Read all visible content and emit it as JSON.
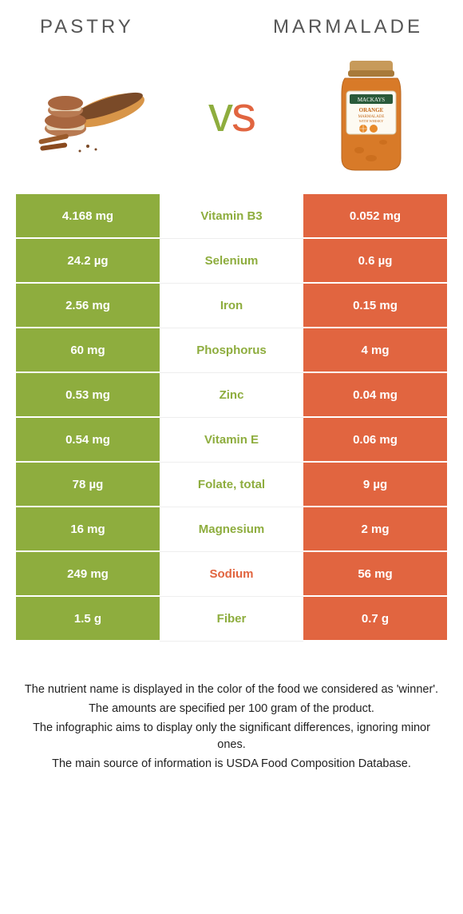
{
  "header": {
    "left_title": "Pastry",
    "right_title": "Marmalade"
  },
  "vs": {
    "v": "v",
    "s": "s"
  },
  "colors": {
    "left": "#8ead3e",
    "right": "#e16540",
    "background": "#ffffff"
  },
  "table": {
    "rows": [
      {
        "left": "4.168 mg",
        "label": "Vitamin B3",
        "right": "0.052 mg",
        "winner": "left"
      },
      {
        "left": "24.2 µg",
        "label": "Selenium",
        "right": "0.6 µg",
        "winner": "left"
      },
      {
        "left": "2.56 mg",
        "label": "Iron",
        "right": "0.15 mg",
        "winner": "left"
      },
      {
        "left": "60 mg",
        "label": "Phosphorus",
        "right": "4 mg",
        "winner": "left"
      },
      {
        "left": "0.53 mg",
        "label": "Zinc",
        "right": "0.04 mg",
        "winner": "left"
      },
      {
        "left": "0.54 mg",
        "label": "Vitamin E",
        "right": "0.06 mg",
        "winner": "left"
      },
      {
        "left": "78 µg",
        "label": "Folate, total",
        "right": "9 µg",
        "winner": "left"
      },
      {
        "left": "16 mg",
        "label": "Magnesium",
        "right": "2 mg",
        "winner": "left"
      },
      {
        "left": "249 mg",
        "label": "Sodium",
        "right": "56 mg",
        "winner": "right"
      },
      {
        "left": "1.5 g",
        "label": "Fiber",
        "right": "0.7 g",
        "winner": "left"
      }
    ]
  },
  "footnotes": [
    "The nutrient name is displayed in the color of the food we considered as 'winner'.",
    "The amounts are specified per 100 gram of the product.",
    "The infographic aims to display only the significant differences, ignoring minor ones.",
    "The main source of information is USDA Food Composition Database."
  ]
}
